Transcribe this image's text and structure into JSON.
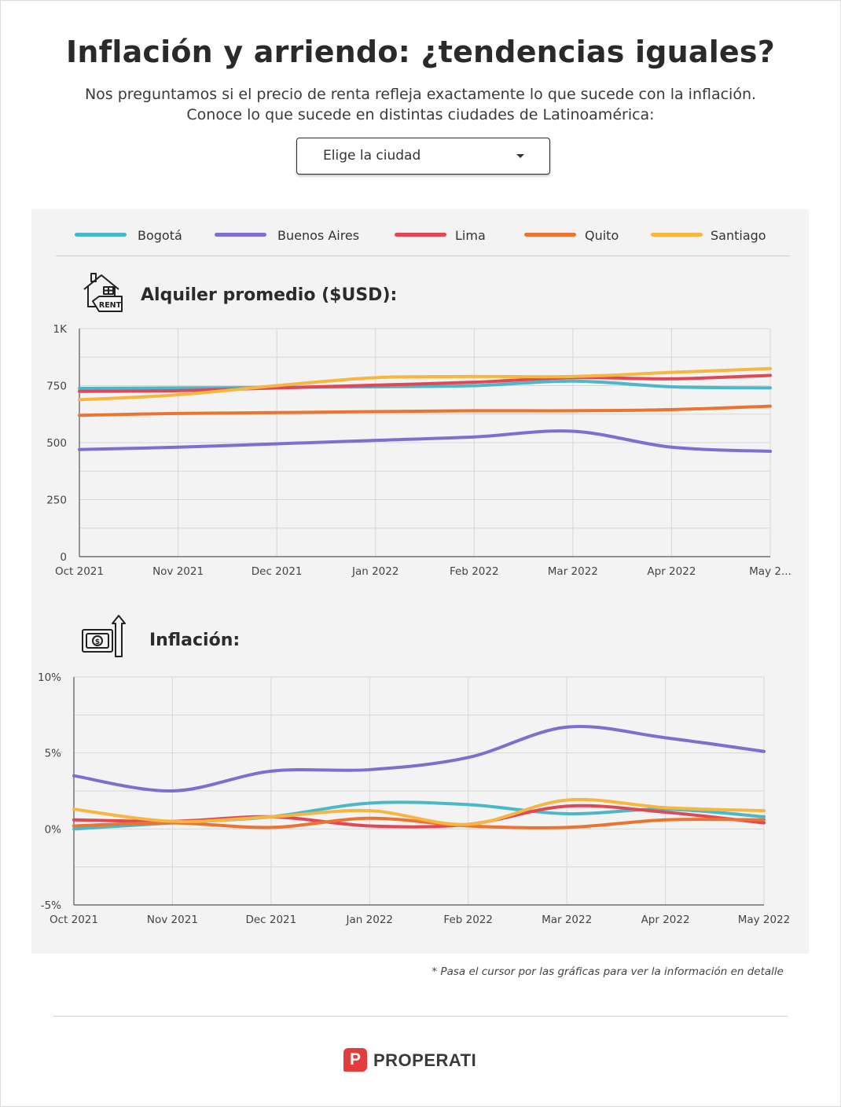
{
  "header": {
    "title": "Inflación y arriendo: ¿tendencias iguales?",
    "subtitle_line1": "Nos preguntamos si el precio de renta refleja exactamente lo que sucede con la inflación.",
    "subtitle_line2": "Conoce lo que sucede en distintas ciudades de Latinoamérica:"
  },
  "city_selector": {
    "label": "Elige la ciudad"
  },
  "legend": [
    {
      "name": "Bogotá",
      "color": "#4ab8c8"
    },
    {
      "name": "Buenos Aires",
      "color": "#7b6fcf"
    },
    {
      "name": "Lima",
      "color": "#e04858"
    },
    {
      "name": "Quito",
      "color": "#ec7433"
    },
    {
      "name": "Santiago",
      "color": "#f6b640"
    }
  ],
  "sections": {
    "rent": {
      "title": "Alquiler promedio ($USD):",
      "icon": "house-rent-icon"
    },
    "inflation": {
      "title": "Inflación:",
      "icon": "money-arrow-up-icon"
    }
  },
  "chart_data": [
    {
      "type": "line",
      "title": "Alquiler promedio ($USD):",
      "x": [
        "Oct 2021",
        "Nov 2021",
        "Dec 2021",
        "Jan 2022",
        "Feb 2022",
        "Mar 2022",
        "Apr 2022",
        "May 2..."
      ],
      "ylim": [
        0,
        1000
      ],
      "yticks": [
        0,
        250,
        500,
        750,
        1000
      ],
      "ytick_labels": [
        "0",
        "250",
        "500",
        "750",
        "1K"
      ],
      "grid": true,
      "series": [
        {
          "name": "Bogotá",
          "color": "#4ab8c8",
          "values": [
            738,
            740,
            742,
            745,
            750,
            770,
            745,
            740
          ]
        },
        {
          "name": "Buenos Aires",
          "color": "#7b6fcf",
          "values": [
            470,
            480,
            495,
            510,
            525,
            550,
            480,
            462
          ]
        },
        {
          "name": "Lima",
          "color": "#e04858",
          "values": [
            725,
            728,
            740,
            752,
            765,
            785,
            780,
            795
          ]
        },
        {
          "name": "Quito",
          "color": "#ec7433",
          "values": [
            620,
            628,
            632,
            636,
            640,
            640,
            645,
            660
          ]
        },
        {
          "name": "Santiago",
          "color": "#f6b640",
          "values": [
            688,
            710,
            750,
            785,
            790,
            790,
            808,
            825
          ]
        }
      ]
    },
    {
      "type": "line",
      "title": "Inflación:",
      "x": [
        "Oct 2021",
        "Nov 2021",
        "Dec 2021",
        "Jan 2022",
        "Feb 2022",
        "Mar 2022",
        "Apr 2022",
        "May 2022"
      ],
      "ylim": [
        -5,
        10
      ],
      "yticks": [
        -5,
        0,
        5,
        10
      ],
      "ytick_labels": [
        "-5%",
        "0%",
        "5%",
        "10%"
      ],
      "grid": true,
      "series": [
        {
          "name": "Bogotá",
          "color": "#4ab8c8",
          "values": [
            0.0,
            0.4,
            0.8,
            1.7,
            1.6,
            1.0,
            1.3,
            0.8
          ]
        },
        {
          "name": "Buenos Aires",
          "color": "#7b6fcf",
          "values": [
            3.5,
            2.5,
            3.8,
            3.9,
            4.7,
            6.7,
            6.0,
            5.1
          ]
        },
        {
          "name": "Lima",
          "color": "#e04858",
          "values": [
            0.6,
            0.5,
            0.8,
            0.2,
            0.3,
            1.5,
            1.1,
            0.4
          ]
        },
        {
          "name": "Quito",
          "color": "#ec7433",
          "values": [
            0.2,
            0.4,
            0.1,
            0.7,
            0.2,
            0.1,
            0.6,
            0.6
          ]
        },
        {
          "name": "Santiago",
          "color": "#f6b640",
          "values": [
            1.3,
            0.5,
            0.8,
            1.2,
            0.3,
            1.9,
            1.4,
            1.2
          ]
        }
      ]
    }
  ],
  "footnote": "* Pasa el cursor por las gráficas para ver la información en detalle",
  "brand": {
    "mark": "P",
    "name": "PROPERATI"
  }
}
